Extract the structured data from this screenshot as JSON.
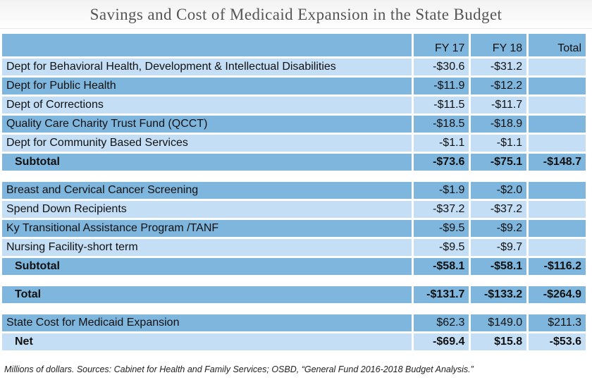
{
  "title": "Savings and Cost of Medicaid Expansion in the State Budget",
  "header": {
    "label": "",
    "fy17": "FY 17",
    "fy18": "FY 18",
    "total": "Total"
  },
  "rows": [
    {
      "label": "Dept for Behavioral Health, Development & Intellectual Disabilities",
      "fy17": "-$30.6",
      "fy18": "-$31.2",
      "total": ""
    },
    {
      "label": "Dept for Public Health",
      "fy17": "-$11.9",
      "fy18": "-$12.2",
      "total": ""
    },
    {
      "label": "Dept of Corrections",
      "fy17": "-$11.5",
      "fy18": "-$11.7",
      "total": ""
    },
    {
      "label": "Quality Care Charity Trust Fund (QCCT)",
      "fy17": "-$18.5",
      "fy18": "-$18.9",
      "total": ""
    },
    {
      "label": "Dept for Community Based Services",
      "fy17": "-$1.1",
      "fy18": "-$1.1",
      "total": ""
    },
    {
      "label": "Subtotal",
      "fy17": "-$73.6",
      "fy18": "-$75.1",
      "total": "-$148.7"
    },
    {
      "label": "Breast and Cervical Cancer Screening",
      "fy17": "-$1.9",
      "fy18": "-$2.0",
      "total": ""
    },
    {
      "label": "Spend Down Recipients",
      "fy17": "-$37.2",
      "fy18": "-$37.2",
      "total": ""
    },
    {
      "label": "Ky Transitional Assistance Program /TANF",
      "fy17": "-$9.5",
      "fy18": "-$9.2",
      "total": ""
    },
    {
      "label": "Nursing Facility-short term",
      "fy17": "-$9.5",
      "fy18": "-$9.7",
      "total": ""
    },
    {
      "label": "Subtotal",
      "fy17": "-$58.1",
      "fy18": "-$58.1",
      "total": "-$116.2"
    },
    {
      "label": "Total",
      "fy17": "-$131.7",
      "fy18": "-$133.2",
      "total": "-$264.9"
    },
    {
      "label": "State Cost for Medicaid Expansion",
      "fy17": "$62.3",
      "fy18": "$149.0",
      "total": "$211.3"
    },
    {
      "label": "Net",
      "fy17": "-$69.4",
      "fy18": "$15.8",
      "total": "-$53.6"
    }
  ],
  "footnote": "Millions of dollars. Sources: Cabinet for Health and Family Services; OSBD, “General Fund 2016-2018 Budget Analysis.”",
  "colors": {
    "dark_row": "#7fb6de",
    "light_row": "#c4dff5",
    "title_text": "#555555"
  }
}
